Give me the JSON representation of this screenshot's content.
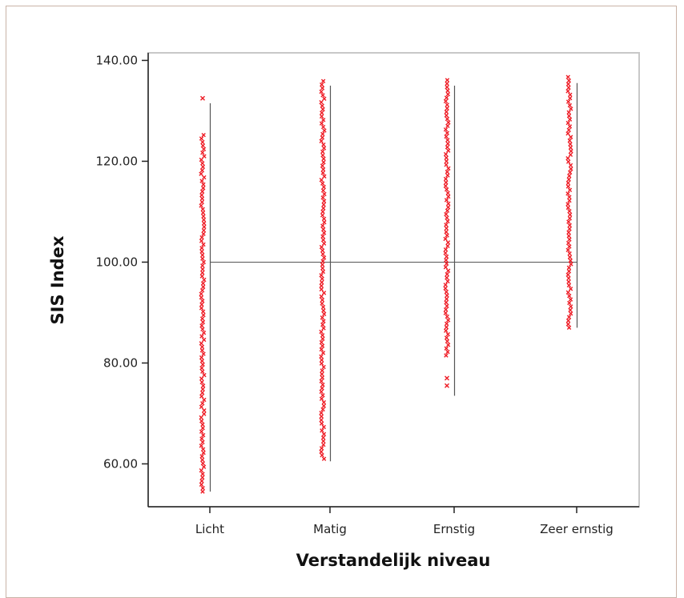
{
  "chart_data": {
    "type": "scatter",
    "title": "",
    "xlabel": "Verstandelijk niveau",
    "ylabel": "SIS Index",
    "categories": [
      "Licht",
      "Matig",
      "Ernstig",
      "Zeer ernstig"
    ],
    "ylim": [
      51.5,
      141.5
    ],
    "yticks": [
      "60.00",
      "80.00",
      "100.00",
      "120.00",
      "140.00"
    ],
    "reference_line_y": 100,
    "series": [
      {
        "range_lines": [
          {
            "category": "Licht",
            "min": 54.5,
            "max": 131.5
          },
          {
            "category": "Matig",
            "min": 60.5,
            "max": 135
          },
          {
            "category": "Ernstig",
            "min": 73.5,
            "max": 135
          },
          {
            "category": "Zeer ernstig",
            "min": 87,
            "max": 135.5
          }
        ],
        "points": [
          {
            "category": "Licht",
            "y_min": 54.5,
            "y_max": 125.5,
            "outliers": [
              132.5
            ]
          },
          {
            "category": "Matig",
            "y_min": 61,
            "y_max": 136.5,
            "outliers": []
          },
          {
            "category": "Ernstig",
            "y_min": 81.5,
            "y_max": 136.5,
            "outliers": [
              75.5,
              77
            ]
          },
          {
            "category": "Zeer ernstig",
            "y_min": 87,
            "y_max": 137,
            "outliers": []
          }
        ]
      }
    ],
    "grid": false,
    "colors": {
      "points": "#ee1c25",
      "lines": "#555555",
      "frame": "#c8c8c8",
      "axes": "#222222"
    }
  }
}
